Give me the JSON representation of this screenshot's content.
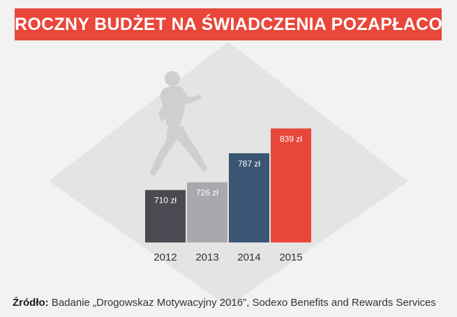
{
  "header": {
    "title": "ROCZNY BUDŻET NA ŚWIADCZENIA POZAPŁACOWE"
  },
  "chart_data": {
    "type": "bar",
    "title": "ROCZNY BUDŻET NA ŚWIADCZENIA POZAPŁACOWE",
    "categories": [
      "2012",
      "2013",
      "2014",
      "2015"
    ],
    "values": [
      710,
      726,
      787,
      839
    ],
    "value_labels": [
      "710 zł",
      "726 zł",
      "787 zł",
      "839 zł"
    ],
    "unit": "zł",
    "xlabel": "",
    "ylabel": "",
    "ylim": [
      600,
      860
    ],
    "grid": false,
    "legend": "none",
    "bar_colors": [
      "#4a4a52",
      "#a8a8ad",
      "#3b5674",
      "#e8473a"
    ]
  },
  "colors": {
    "accent": "#e8473a",
    "background": "#f2f2f2",
    "diamond": "#e4e4e4",
    "silhouette": "#cfcfcf",
    "axis_text": "#333333",
    "label_text": "#ffffff"
  },
  "illustration": {
    "icon": "walking-man-icon"
  },
  "footer": {
    "source_label": "Źródło:",
    "source_text": " Badanie „Drogowskaz Motywacyjny 2016”, Sodexo Benefits and Rewards Services"
  }
}
